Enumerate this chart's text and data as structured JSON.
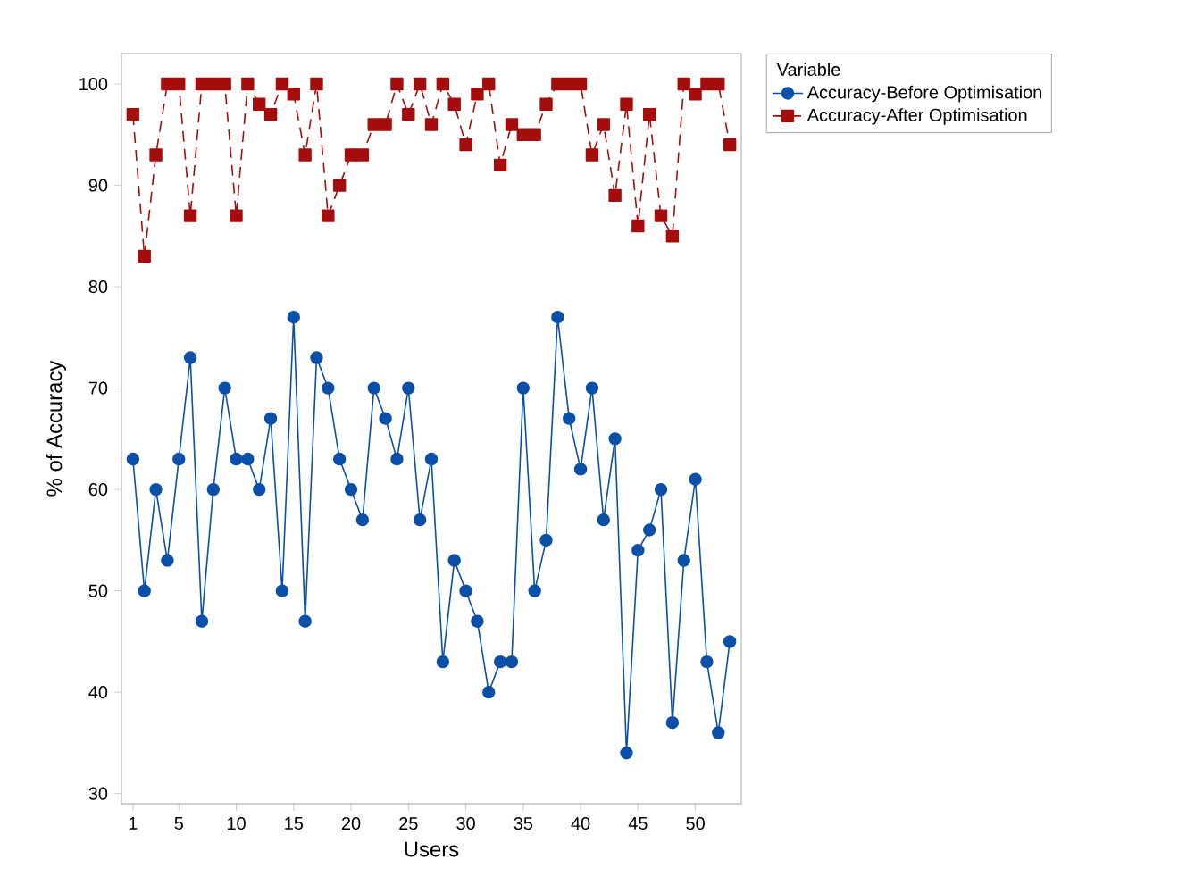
{
  "chart_data": {
    "type": "line",
    "xlabel": "Users",
    "ylabel": "% of Accuracy",
    "legend_title": "Variable",
    "legend": "top right",
    "grid": false,
    "x": [
      1,
      2,
      3,
      4,
      5,
      6,
      7,
      8,
      9,
      10,
      11,
      12,
      13,
      14,
      15,
      16,
      17,
      18,
      19,
      20,
      21,
      22,
      23,
      24,
      25,
      26,
      27,
      28,
      29,
      30,
      31,
      32,
      33,
      34,
      35,
      36,
      37,
      38,
      39,
      40,
      41,
      42,
      43,
      44,
      45,
      46,
      47,
      48,
      49,
      50,
      51,
      52,
      53
    ],
    "xlim": [
      0,
      54
    ],
    "xticks": [
      1,
      5,
      10,
      15,
      20,
      25,
      30,
      35,
      40,
      45,
      50
    ],
    "ylim": [
      29,
      103
    ],
    "yticks": [
      30,
      40,
      50,
      60,
      70,
      80,
      90,
      100
    ],
    "series": [
      {
        "name": "Accuracy-Before Optimisation",
        "color": "#0a4fa8",
        "marker": "circle",
        "line_style": "solid",
        "values": [
          63,
          50,
          60,
          53,
          63,
          73,
          47,
          60,
          70,
          63,
          63,
          60,
          67,
          50,
          77,
          47,
          73,
          70,
          63,
          60,
          57,
          70,
          67,
          63,
          70,
          57,
          63,
          43,
          53,
          50,
          47,
          40,
          43,
          43,
          70,
          50,
          55,
          77,
          67,
          62,
          70,
          57,
          65,
          34,
          54,
          56,
          60,
          37,
          53,
          61,
          43,
          36,
          45
        ]
      },
      {
        "name": "Accuracy-After Optimisation",
        "color": "#a50d0d",
        "marker": "square",
        "line_style": "dashed",
        "values": [
          97,
          83,
          93,
          100,
          100,
          87,
          100,
          100,
          100,
          87,
          100,
          98,
          97,
          100,
          99,
          93,
          100,
          87,
          90,
          93,
          93,
          96,
          96,
          100,
          97,
          100,
          96,
          100,
          98,
          94,
          99,
          100,
          92,
          96,
          95,
          95,
          98,
          100,
          100,
          100,
          93,
          96,
          89,
          98,
          86,
          97,
          87,
          85,
          100,
          99,
          100,
          100,
          94
        ]
      }
    ]
  }
}
